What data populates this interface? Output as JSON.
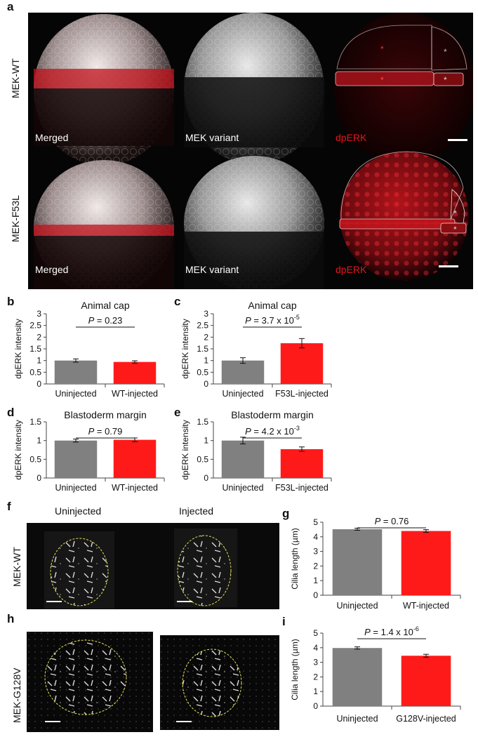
{
  "panel_labels": {
    "a": "a",
    "b": "b",
    "c": "c",
    "d": "d",
    "e": "e",
    "f": "f",
    "g": "g",
    "h": "h",
    "i": "i"
  },
  "panel_a": {
    "rows": [
      {
        "label": "MEK-WT",
        "captions": [
          "Merged",
          "MEK variant",
          "dpERK"
        ]
      },
      {
        "label": "MEK-F53L",
        "captions": [
          "Merged",
          "MEK variant",
          "dpERK"
        ]
      }
    ],
    "colors": {
      "dpERK": "#e8141c",
      "white": "#ffffff"
    }
  },
  "panel_f": {
    "col_headers": [
      "Uninjected",
      "Injected"
    ],
    "row_label_f": "MEK-WT",
    "row_label_h": "MEK-G128V",
    "ring_color": "#e3e35a"
  },
  "chart_data": [
    {
      "id": "b",
      "type": "bar",
      "title": "Animal cap",
      "ylabel": "dpERK intensity",
      "categories": [
        "Uninjected",
        "WT-injected"
      ],
      "values": [
        1.0,
        0.94
      ],
      "errors": [
        0.07,
        0.05
      ],
      "colors": [
        "#808080",
        "#ff1a1a"
      ],
      "ylim": [
        0,
        3
      ],
      "yticks": [
        "0",
        "0.5",
        "1",
        "1.5",
        "2",
        "2.5",
        "3"
      ],
      "annotation": {
        "p": "P",
        "rest": " = 0.23",
        "exp": ""
      }
    },
    {
      "id": "c",
      "type": "bar",
      "title": "Animal cap",
      "ylabel": "dpERK intensity",
      "categories": [
        "Uninjected",
        "F53L-injected"
      ],
      "values": [
        1.0,
        1.74
      ],
      "errors": [
        0.12,
        0.2
      ],
      "colors": [
        "#808080",
        "#ff1a1a"
      ],
      "ylim": [
        0,
        3
      ],
      "yticks": [
        "0",
        "0.5",
        "1",
        "1.5",
        "2",
        "2.5",
        "3"
      ],
      "annotation": {
        "p": "P",
        "rest": " = 3.7 x 10",
        "exp": "-5"
      }
    },
    {
      "id": "d",
      "type": "bar",
      "title": "Blastoderm margin",
      "ylabel": "dpERK intensity",
      "categories": [
        "Uninjected",
        "WT-injected"
      ],
      "values": [
        1.0,
        1.02
      ],
      "errors": [
        0.04,
        0.05
      ],
      "colors": [
        "#808080",
        "#ff1a1a"
      ],
      "ylim": [
        0,
        1.5
      ],
      "yticks": [
        "0",
        "0.5",
        "1",
        "1.5"
      ],
      "annotation": {
        "p": "P",
        "rest": " = 0.79",
        "exp": ""
      }
    },
    {
      "id": "e",
      "type": "bar",
      "title": "Blastoderm margin",
      "ylabel": "dpERK intensity",
      "categories": [
        "Uninjected",
        "F53L-injected"
      ],
      "values": [
        1.0,
        0.77
      ],
      "errors": [
        0.09,
        0.06
      ],
      "colors": [
        "#808080",
        "#ff1a1a"
      ],
      "ylim": [
        0,
        1.5
      ],
      "yticks": [
        "0",
        "0.5",
        "1",
        "1.5"
      ],
      "annotation": {
        "p": "P",
        "rest": " = 4.2 x 10",
        "exp": "-3"
      }
    },
    {
      "id": "g",
      "type": "bar",
      "title": "",
      "ylabel": "Cilia length (µm)",
      "categories": [
        "Uninjected",
        "WT-injected"
      ],
      "values": [
        4.52,
        4.4
      ],
      "errors": [
        0.07,
        0.09
      ],
      "colors": [
        "#808080",
        "#ff1a1a"
      ],
      "ylim": [
        0,
        5
      ],
      "yticks": [
        "0",
        "1",
        "2",
        "3",
        "4",
        "5"
      ],
      "annotation": {
        "p": "P",
        "rest": " = 0.76",
        "exp": ""
      }
    },
    {
      "id": "i",
      "type": "bar",
      "title": "",
      "ylabel": "Cilia length (µm)",
      "categories": [
        "Uninjected",
        "G128V-injected"
      ],
      "values": [
        3.98,
        3.45
      ],
      "errors": [
        0.08,
        0.1
      ],
      "colors": [
        "#808080",
        "#ff1a1a"
      ],
      "ylim": [
        0,
        5
      ],
      "yticks": [
        "0",
        "1",
        "2",
        "3",
        "4",
        "5"
      ],
      "annotation": {
        "p": "P",
        "rest": " = 1.4 x 10",
        "exp": "-6"
      }
    }
  ]
}
